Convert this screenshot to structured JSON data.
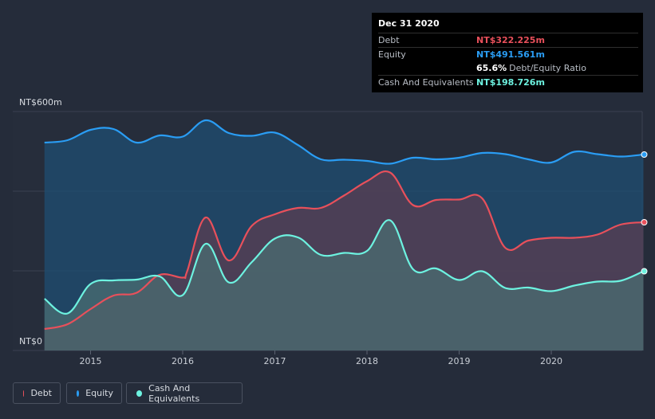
{
  "tooltip": {
    "date": "Dec 31 2020",
    "rows": [
      {
        "label": "Debt",
        "value": "NT$322.225m",
        "color": "#e8505b"
      },
      {
        "label": "Equity",
        "value": "NT$491.561m",
        "color": "#2a9df4"
      },
      {
        "label": "",
        "value": "65.6%",
        "sub": "Debt/Equity Ratio",
        "color": "#ffffff"
      },
      {
        "label": "Cash And Equivalents",
        "value": "NT$198.726m",
        "color": "#6df2e0"
      }
    ]
  },
  "legend": [
    {
      "label": "Debt",
      "color": "#e8505b"
    },
    {
      "label": "Equity",
      "color": "#2a9df4"
    },
    {
      "label": "Cash And Equivalents",
      "color": "#6df2e0"
    }
  ],
  "chart_data": {
    "type": "area",
    "ylim": [
      0,
      600
    ],
    "y_unit": "NT$m",
    "y_tick_labels": [
      {
        "value": 600,
        "label": "NT$600m"
      },
      {
        "value": 0,
        "label": "NT$0"
      }
    ],
    "xlim": [
      2014.5,
      2021.0
    ],
    "x_ticks": [
      2015,
      2016,
      2017,
      2018,
      2019,
      2020
    ],
    "series": [
      {
        "name": "Equity",
        "color": "#2a9df4",
        "x": [
          2014.5,
          2014.75,
          2015.0,
          2015.25,
          2015.5,
          2015.75,
          2016.0,
          2016.25,
          2016.5,
          2016.75,
          2017.0,
          2017.25,
          2017.5,
          2017.75,
          2018.0,
          2018.25,
          2018.5,
          2018.75,
          2019.0,
          2019.25,
          2019.5,
          2019.75,
          2020.0,
          2020.25,
          2020.5,
          2020.75,
          2021.0
        ],
        "values": [
          522,
          528,
          554,
          556,
          522,
          540,
          537,
          578,
          546,
          539,
          547,
          516,
          480,
          479,
          476,
          469,
          484,
          480,
          484,
          496,
          493,
          480,
          472,
          499,
          493,
          487,
          492
        ]
      },
      {
        "name": "Debt",
        "color": "#e8505b",
        "x": [
          2014.5,
          2014.75,
          2015.0,
          2015.25,
          2015.5,
          2015.75,
          2016.0,
          2016.05,
          2016.25,
          2016.5,
          2016.75,
          2017.0,
          2017.25,
          2017.5,
          2017.75,
          2018.0,
          2018.25,
          2018.5,
          2018.75,
          2019.0,
          2019.25,
          2019.5,
          2019.75,
          2020.0,
          2020.25,
          2020.5,
          2020.75,
          2021.0
        ],
        "values": [
          54,
          66,
          104,
          138,
          145,
          190,
          183,
          200,
          334,
          226,
          313,
          342,
          358,
          358,
          389,
          425,
          447,
          365,
          378,
          379,
          382,
          258,
          276,
          283,
          283,
          291,
          316,
          322
        ]
      },
      {
        "name": "Cash And Equivalents",
        "color": "#6df2e0",
        "x": [
          2014.5,
          2014.75,
          2015.0,
          2015.25,
          2015.5,
          2015.75,
          2016.0,
          2016.25,
          2016.5,
          2016.75,
          2017.0,
          2017.25,
          2017.5,
          2017.75,
          2018.0,
          2018.25,
          2018.5,
          2018.75,
          2019.0,
          2019.25,
          2019.5,
          2019.75,
          2020.0,
          2020.25,
          2020.5,
          2020.75,
          2021.0
        ],
        "values": [
          130,
          93,
          167,
          176,
          178,
          186,
          139,
          268,
          171,
          222,
          281,
          284,
          240,
          245,
          250,
          327,
          204,
          206,
          177,
          199,
          157,
          158,
          149,
          163,
          173,
          175,
          199
        ]
      }
    ]
  }
}
